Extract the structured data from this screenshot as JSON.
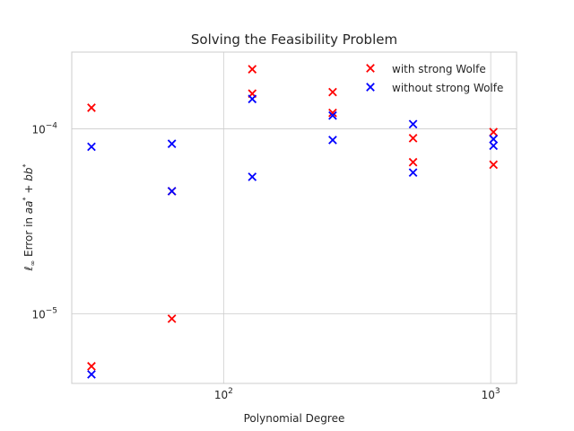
{
  "chart_data": {
    "type": "scatter",
    "title": "Solving the Feasibility Problem",
    "xlabel": "Polynomial Degree",
    "ylabel_parts": [
      "ℓ",
      "∞",
      " Error in ",
      "aa",
      "*",
      " + ",
      "bb",
      "*"
    ],
    "x_scale": "log",
    "y_scale": "log",
    "xlim": [
      27,
      1250
    ],
    "ylim": [
      4.2e-06,
      0.00026
    ],
    "x_ticks": [
      {
        "value": 100,
        "base": "10",
        "exp": "2"
      },
      {
        "value": 1000,
        "base": "10",
        "exp": "3"
      }
    ],
    "y_ticks": [
      {
        "value": 1e-05,
        "base": "10",
        "exp": "−5"
      },
      {
        "value": 0.0001,
        "base": "10",
        "exp": "−4"
      }
    ],
    "grid": true,
    "legend_position": "upper right",
    "series": [
      {
        "name": "with strong Wolfe",
        "color": "#ff0000",
        "marker": "x",
        "points": [
          {
            "x": 32,
            "y": 0.00013
          },
          {
            "x": 32,
            "y": 5.2e-06
          },
          {
            "x": 64,
            "y": 9.4e-06
          },
          {
            "x": 64,
            "y": 4.6e-05
          },
          {
            "x": 128,
            "y": 0.00021
          },
          {
            "x": 128,
            "y": 0.000155
          },
          {
            "x": 256,
            "y": 0.000158
          },
          {
            "x": 256,
            "y": 0.000122
          },
          {
            "x": 512,
            "y": 8.9e-05
          },
          {
            "x": 512,
            "y": 6.6e-05
          },
          {
            "x": 1024,
            "y": 9.6e-05
          },
          {
            "x": 1024,
            "y": 6.4e-05
          }
        ]
      },
      {
        "name": "without strong Wolfe",
        "color": "#0000ff",
        "marker": "x",
        "points": [
          {
            "x": 32,
            "y": 8e-05
          },
          {
            "x": 32,
            "y": 4.7e-06
          },
          {
            "x": 64,
            "y": 8.3e-05
          },
          {
            "x": 64,
            "y": 4.6e-05
          },
          {
            "x": 128,
            "y": 0.000145
          },
          {
            "x": 128,
            "y": 5.5e-05
          },
          {
            "x": 256,
            "y": 0.000118
          },
          {
            "x": 256,
            "y": 8.7e-05
          },
          {
            "x": 512,
            "y": 0.000106
          },
          {
            "x": 512,
            "y": 5.8e-05
          },
          {
            "x": 1024,
            "y": 8.8e-05
          },
          {
            "x": 1024,
            "y": 8.1e-05
          }
        ]
      }
    ]
  }
}
